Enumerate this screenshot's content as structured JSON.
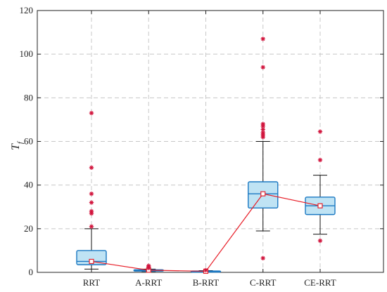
{
  "chart_data": {
    "type": "box",
    "ylabel": "T",
    "ylabel_subscript": "f",
    "xlabel": "",
    "title": "",
    "ylim": [
      0,
      120
    ],
    "yticks": [
      0,
      20,
      40,
      60,
      80,
      100,
      120
    ],
    "grid": true,
    "categories": [
      "RRT",
      "A-RRT",
      "B-RRT",
      "C-RRT",
      "CE-RRT"
    ],
    "boxes": [
      {
        "category": "RRT",
        "whisker_low": 1.5,
        "q1": 3.5,
        "median": 5.0,
        "q3": 10.0,
        "whisker_high": 20.0,
        "outliers": [
          21,
          27,
          28,
          32,
          36,
          48,
          73
        ]
      },
      {
        "category": "A-RRT",
        "whisker_low": 0.4,
        "q1": 0.6,
        "median": 0.8,
        "q3": 1.2,
        "whisker_high": 1.5,
        "outliers": [
          2,
          2.5,
          3
        ]
      },
      {
        "category": "B-RRT",
        "whisker_low": 0.1,
        "q1": 0.2,
        "median": 0.3,
        "q3": 0.6,
        "whisker_high": 0.8,
        "outliers": [
          1
        ]
      },
      {
        "category": "C-RRT",
        "whisker_low": 19,
        "q1": 29.5,
        "median": 36,
        "q3": 41.5,
        "whisker_high": 60,
        "outliers": [
          6.5,
          62,
          63,
          64,
          65.5,
          67,
          68,
          94,
          107
        ]
      },
      {
        "category": "CE-RRT",
        "whisker_low": 17.5,
        "q1": 26.5,
        "median": 30.5,
        "q3": 34.5,
        "whisker_high": 44.5,
        "outliers": [
          14.5,
          51.5,
          64.5
        ]
      }
    ],
    "mean_series": {
      "values": [
        5.0,
        1.0,
        0.5,
        36.0,
        30.5
      ],
      "color": "#e8202a",
      "marker": "square"
    },
    "colors": {
      "box_fill": "#bfe3f4",
      "box_edge": "#1a78c2",
      "median": "#1a78c2",
      "whisker": "#111111",
      "outlier": "#d1143c",
      "grid": "#c8c8c8"
    }
  }
}
